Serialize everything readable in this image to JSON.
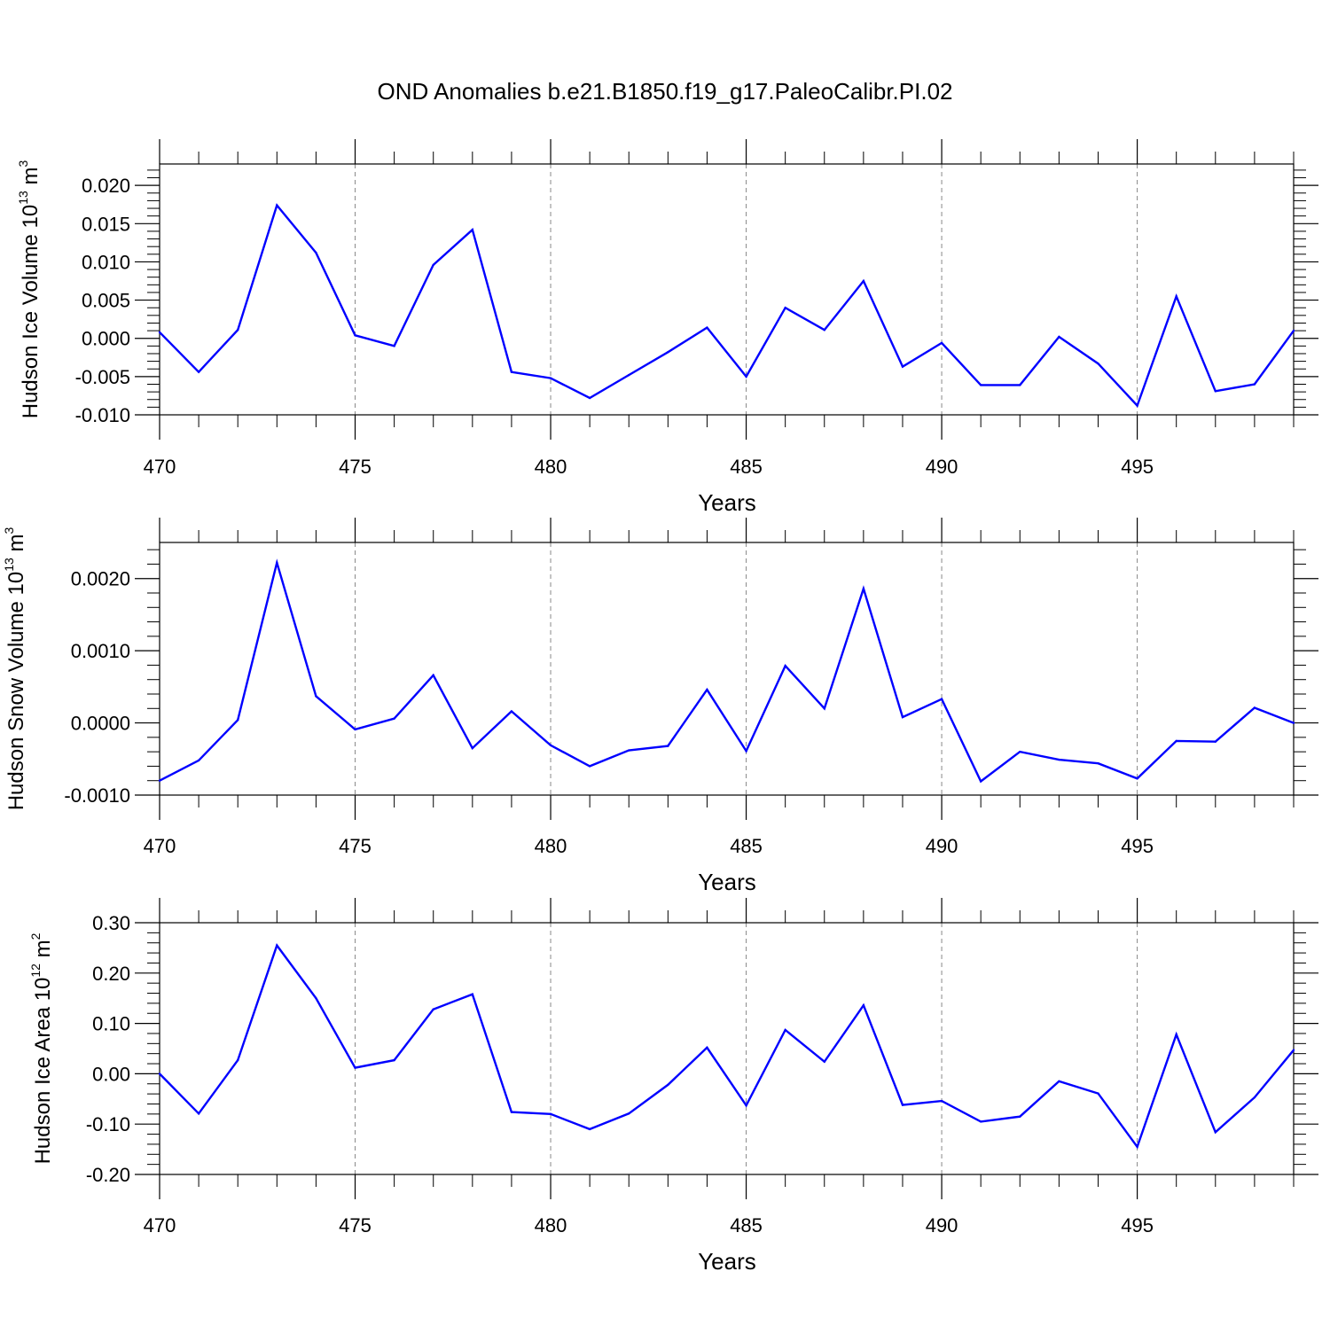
{
  "title": "OND Anomalies b.e21.B1850.f19_g17.PaleoCalibr.PI.02",
  "colors": {
    "series": "#0000ff",
    "axis": "#000000",
    "grid": "#888888"
  },
  "chart_data": [
    {
      "type": "line",
      "ylabel": {
        "main": "Hudson Ice Volume 10",
        "exp": "13",
        "unit": " m",
        "unit_exp": "3"
      },
      "xlabel": "Years",
      "xlim": [
        470,
        499
      ],
      "ylim": [
        -0.01,
        0.0228
      ],
      "grid": "vertical dashed at major x ticks",
      "x_ticks": [
        470,
        475,
        480,
        485,
        490,
        495
      ],
      "x_tick_labels": [
        "470",
        "475",
        "480",
        "485",
        "490",
        "495"
      ],
      "y_ticks": [
        -0.01,
        -0.005,
        0.0,
        0.005,
        0.01,
        0.015,
        0.02
      ],
      "y_tick_labels": [
        "-0.010",
        "-0.005",
        "0.000",
        "0.005",
        "0.010",
        "0.015",
        "0.020"
      ],
      "series": [
        {
          "x": [
            470,
            471,
            472,
            473,
            474,
            475,
            476,
            477,
            478,
            479,
            480,
            481,
            482,
            483,
            484,
            485,
            486,
            487,
            488,
            489,
            490,
            491,
            492,
            493,
            494,
            495,
            496,
            497,
            498,
            499
          ],
          "values": [
            0.0008,
            -0.0044,
            0.0011,
            0.0174,
            0.0112,
            0.0004,
            -0.001,
            0.0096,
            0.0142,
            -0.0044,
            -0.0052,
            -0.0078,
            -0.0048,
            -0.0018,
            0.0014,
            -0.005,
            0.004,
            0.0011,
            0.0075,
            -0.0037,
            -0.0006,
            -0.0061,
            -0.0061,
            0.0002,
            -0.0033,
            -0.0088,
            0.0055,
            -0.0069,
            -0.006,
            0.001
          ]
        }
      ]
    },
    {
      "type": "line",
      "ylabel": {
        "main": "Hudson Snow Volume 10",
        "exp": "13",
        "unit": " m",
        "unit_exp": "3"
      },
      "xlabel": "Years",
      "xlim": [
        470,
        499
      ],
      "ylim": [
        -0.001,
        0.0025
      ],
      "grid": "vertical dashed at major x ticks",
      "x_ticks": [
        470,
        475,
        480,
        485,
        490,
        495
      ],
      "x_tick_labels": [
        "470",
        "475",
        "480",
        "485",
        "490",
        "495"
      ],
      "y_ticks": [
        -0.001,
        0.0,
        0.001,
        0.002
      ],
      "y_tick_labels": [
        "-0.0010",
        "0.0000",
        "0.0010",
        "0.0020"
      ],
      "series": [
        {
          "x": [
            470,
            471,
            472,
            473,
            474,
            475,
            476,
            477,
            478,
            479,
            480,
            481,
            482,
            483,
            484,
            485,
            486,
            487,
            488,
            489,
            490,
            491,
            492,
            493,
            494,
            495,
            496,
            497,
            498,
            499
          ],
          "values": [
            -0.0008,
            -0.00052,
            4e-05,
            0.00222,
            0.00037,
            -9e-05,
            6e-05,
            0.00066,
            -0.00035,
            0.00016,
            -0.00031,
            -0.0006,
            -0.00038,
            -0.00032,
            0.00046,
            -0.00039,
            0.00079,
            0.0002,
            0.00186,
            8e-05,
            0.00033,
            -0.00081,
            -0.0004,
            -0.00051,
            -0.00056,
            -0.00077,
            -0.00025,
            -0.00026,
            0.00021,
            0.0
          ]
        }
      ]
    },
    {
      "type": "line",
      "ylabel": {
        "main": "Hudson Ice Area 10",
        "exp": "12",
        "unit": " m",
        "unit_exp": "2"
      },
      "xlabel": "Years",
      "xlim": [
        470,
        499
      ],
      "ylim": [
        -0.2,
        0.3
      ],
      "grid": "vertical dashed at major x ticks",
      "x_ticks": [
        470,
        475,
        480,
        485,
        490,
        495
      ],
      "x_tick_labels": [
        "470",
        "475",
        "480",
        "485",
        "490",
        "495"
      ],
      "y_ticks": [
        -0.2,
        -0.1,
        0.0,
        0.1,
        0.2,
        0.3
      ],
      "y_tick_labels": [
        "-0.20",
        "-0.10",
        "0.00",
        "0.10",
        "0.20",
        "0.30"
      ],
      "series": [
        {
          "x": [
            470,
            471,
            472,
            473,
            474,
            475,
            476,
            477,
            478,
            479,
            480,
            481,
            482,
            483,
            484,
            485,
            486,
            487,
            488,
            489,
            490,
            491,
            492,
            493,
            494,
            495,
            496,
            497,
            498,
            499
          ],
          "values": [
            0.0,
            -0.079,
            0.027,
            0.255,
            0.15,
            0.012,
            0.027,
            0.128,
            0.158,
            -0.076,
            -0.08,
            -0.11,
            -0.079,
            -0.022,
            0.052,
            -0.063,
            0.087,
            0.024,
            0.136,
            -0.062,
            -0.054,
            -0.095,
            -0.085,
            -0.015,
            -0.039,
            -0.145,
            0.078,
            -0.116,
            -0.047,
            0.047
          ]
        }
      ]
    }
  ]
}
